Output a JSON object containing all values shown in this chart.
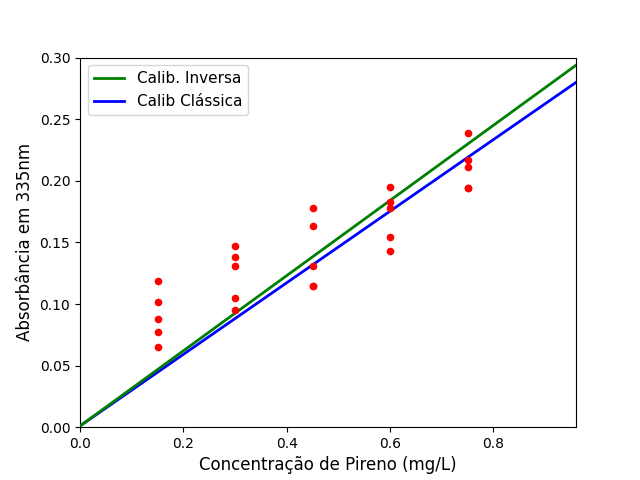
{
  "scatter_x": [
    0.15,
    0.15,
    0.15,
    0.15,
    0.15,
    0.3,
    0.3,
    0.3,
    0.3,
    0.3,
    0.45,
    0.45,
    0.45,
    0.45,
    0.45,
    0.6,
    0.6,
    0.6,
    0.6,
    0.6,
    0.75,
    0.75,
    0.75,
    0.75,
    0.75
  ],
  "scatter_y": [
    0.119,
    0.102,
    0.088,
    0.077,
    0.065,
    0.147,
    0.138,
    0.131,
    0.105,
    0.095,
    0.178,
    0.163,
    0.131,
    0.115,
    0.115,
    0.195,
    0.183,
    0.178,
    0.154,
    0.143,
    0.239,
    0.217,
    0.211,
    0.194,
    0.194
  ],
  "classic_slope": 0.2905,
  "classic_intercept": 0.001,
  "inverse_slope": 0.305,
  "inverse_intercept": 0.001,
  "x_line_start": 0.0,
  "x_line_end": 0.96,
  "scatter_color": "#ff0000",
  "classic_color": "#0000ff",
  "inverse_color": "#008000",
  "xlabel": "Concentração de Pireno (mg/L)",
  "ylabel": "Absorbância em 335nm",
  "legend_inverse": "Calib. Inversa",
  "legend_classic": "Calib Clássica",
  "xlim": [
    0.0,
    0.96
  ],
  "ylim": [
    0.0,
    0.3
  ],
  "xticks": [
    0.0,
    0.2,
    0.4,
    0.6,
    0.8
  ],
  "yticks": [
    0.0,
    0.05,
    0.1,
    0.15,
    0.2,
    0.25,
    0.3
  ],
  "scatter_size": 20,
  "line_width": 2,
  "xlabel_fontsize": 12,
  "ylabel_fontsize": 12,
  "legend_fontsize": 11
}
